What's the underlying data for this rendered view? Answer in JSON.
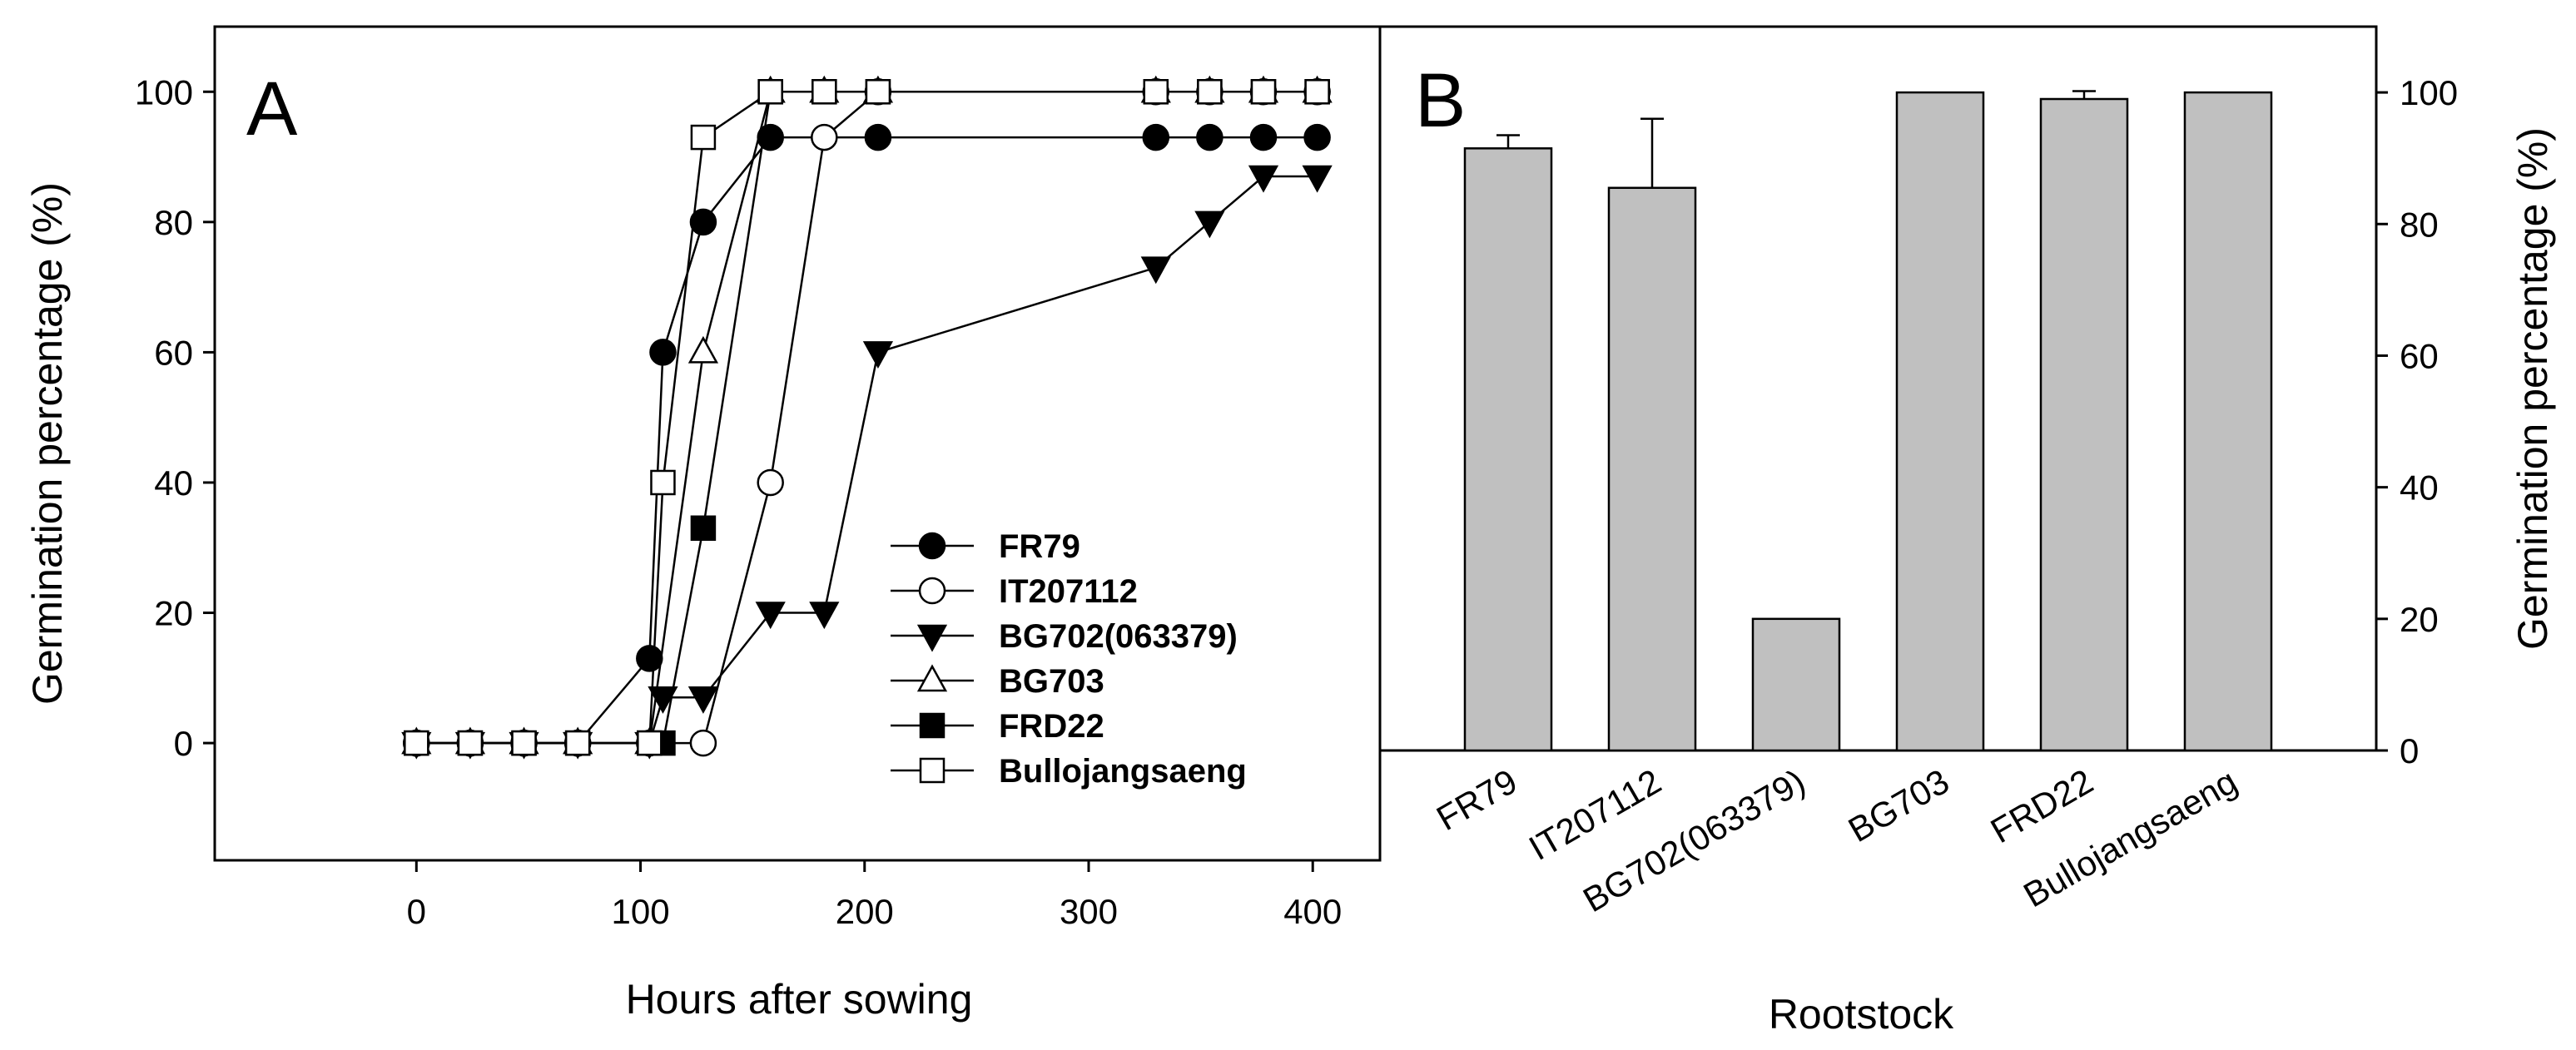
{
  "chart_data": [
    {
      "panel": "A",
      "type": "line",
      "xlabel": "Hours after sowing",
      "ylabel": "Germination percentage (%)",
      "xlim": [
        -90,
        430
      ],
      "ylim": [
        -18,
        110
      ],
      "xticks": [
        0,
        100,
        200,
        300,
        400
      ],
      "yticks": [
        0,
        20,
        40,
        60,
        80,
        100
      ],
      "series": [
        {
          "name": "FR79",
          "marker": "circle",
          "fill": "filled",
          "x": [
            0,
            24,
            48,
            72,
            104,
            110,
            128,
            158,
            206,
            330,
            354,
            378,
            402
          ],
          "y": [
            0,
            0,
            0,
            0,
            13,
            60,
            80,
            93,
            93,
            93,
            93,
            93,
            93
          ]
        },
        {
          "name": "IT207112",
          "marker": "circle",
          "fill": "open",
          "x": [
            0,
            24,
            48,
            72,
            104,
            128,
            158,
            182,
            206,
            330,
            354,
            378,
            402
          ],
          "y": [
            0,
            0,
            0,
            0,
            0,
            0,
            40,
            93,
            100,
            100,
            100,
            100,
            100
          ]
        },
        {
          "name": "BG702(063379)",
          "marker": "triangle-down",
          "fill": "filled",
          "x": [
            0,
            24,
            48,
            72,
            104,
            110,
            128,
            158,
            182,
            206,
            330,
            354,
            378,
            402
          ],
          "y": [
            0,
            0,
            0,
            0,
            0,
            7,
            7,
            20,
            20,
            60,
            73,
            80,
            87,
            87
          ]
        },
        {
          "name": "BG703",
          "marker": "triangle-up",
          "fill": "open",
          "x": [
            0,
            24,
            48,
            72,
            104,
            128,
            158,
            182,
            206,
            330,
            354,
            378,
            402
          ],
          "y": [
            0,
            0,
            0,
            0,
            0,
            60,
            100,
            100,
            100,
            100,
            100,
            100,
            100
          ]
        },
        {
          "name": "FRD22",
          "marker": "square",
          "fill": "filled",
          "x": [
            0,
            24,
            48,
            72,
            104,
            110,
            128,
            158,
            182,
            206,
            330,
            354,
            378,
            402
          ],
          "y": [
            0,
            0,
            0,
            0,
            0,
            0,
            33,
            100,
            100,
            100,
            100,
            100,
            100,
            100
          ]
        },
        {
          "name": "Bullojangsaeng",
          "marker": "square",
          "fill": "open",
          "x": [
            0,
            24,
            48,
            72,
            104,
            110,
            128,
            158,
            182,
            206,
            330,
            354,
            378,
            402
          ],
          "y": [
            0,
            0,
            0,
            0,
            0,
            40,
            93,
            100,
            100,
            100,
            100,
            100,
            100,
            100
          ]
        }
      ],
      "legend": "lower-right"
    },
    {
      "panel": "B",
      "type": "bar",
      "xlabel": "Rootstock",
      "ylabel": "Germination percentage (%)",
      "ylim": [
        0,
        110
      ],
      "yticks": [
        0,
        20,
        40,
        60,
        80,
        100
      ],
      "categories": [
        "FR79",
        "IT207112",
        "BG702(063379)",
        "BG703",
        "FRD22",
        "Bullojangsaeng"
      ],
      "values": [
        91.5,
        85.5,
        20,
        100,
        99,
        100
      ],
      "errors": [
        2,
        10.5,
        0,
        0,
        1.2,
        0
      ],
      "bar_color": "#c0c0c0"
    }
  ]
}
